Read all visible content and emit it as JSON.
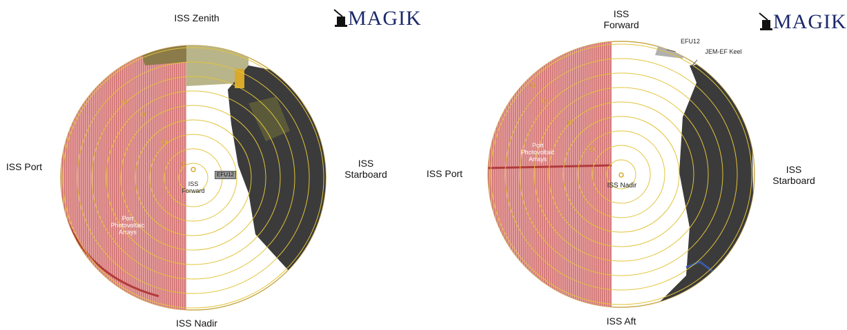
{
  "brand": {
    "logo_text": "MAGIK",
    "color": "#1c2a6b"
  },
  "panels": {
    "left": {
      "top": "ISS Zenith",
      "bottom": "ISS Nadir",
      "left": "ISS Port",
      "right": "ISS Starboard",
      "center": "ISS\nForward",
      "arrays": "Port\nPhotovoltaic\nArrays",
      "efu": "EFU12"
    },
    "right": {
      "top": "ISS\nForward",
      "bottom": "ISS Aft",
      "left": "ISS Port",
      "right": "ISS\nStarboard",
      "center": "ISS Nadir",
      "arrays": "Port\nPhotovoltaic\nArrays",
      "efu": "EFU12",
      "keel": "JEM-EF Keel"
    }
  },
  "colors": {
    "ring": "#e2c43a",
    "arrays": "#d98a8a",
    "structure": "#3a3a3a",
    "sky": "#ffffff"
  }
}
